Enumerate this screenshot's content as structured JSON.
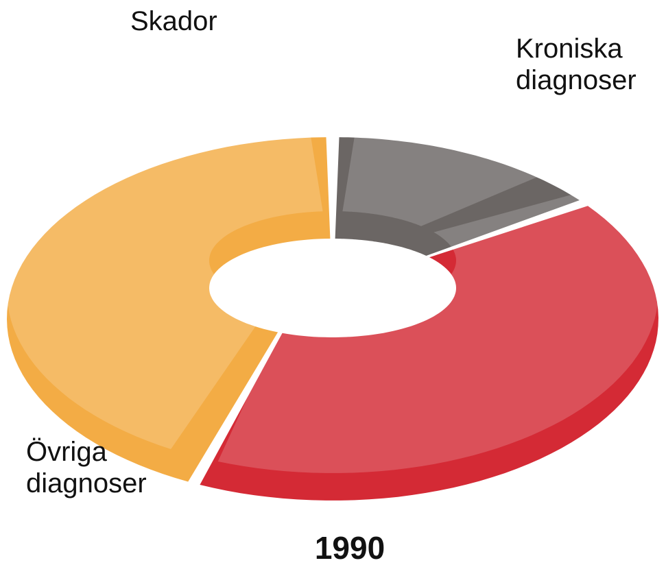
{
  "chart_data": {
    "type": "pie",
    "donut": true,
    "title": "1990",
    "categories": [
      "Skador",
      "Kroniska diagnoser",
      "Övriga diagnoser"
    ],
    "values": [
      14,
      43,
      43
    ],
    "colors": [
      "#6b6664",
      "#d42a35",
      "#f3ac45"
    ]
  }
}
